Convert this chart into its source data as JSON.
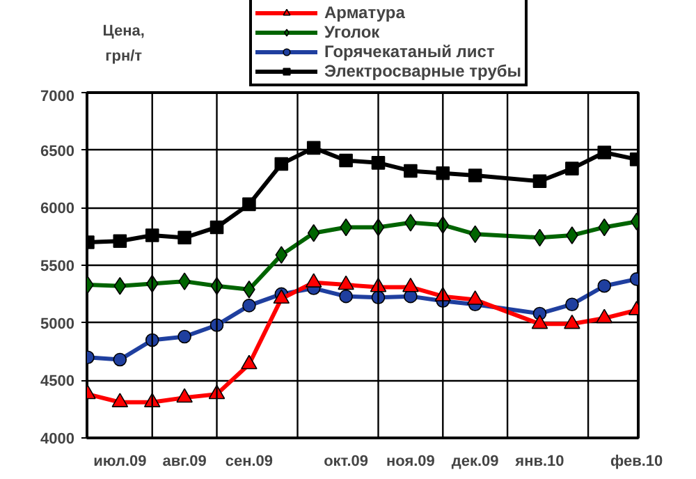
{
  "chart_data": {
    "type": "line",
    "ylabel": "Цена, грн/т",
    "categories": [
      null,
      "июл.09",
      null,
      "авг.09",
      null,
      "сен.09",
      null,
      null,
      "окт.09",
      null,
      "ноя.09",
      null,
      "дек.09",
      null,
      "янв.10",
      null,
      null,
      "фев.10"
    ],
    "series": [
      {
        "name": "Арматура",
        "color": "#ff0000",
        "marker": "triangle",
        "values": [
          4380,
          4310,
          4310,
          4350,
          4380,
          4640,
          5210,
          5350,
          5330,
          5310,
          5310,
          5230,
          5200,
          null,
          4990,
          4990,
          5040,
          5110
        ]
      },
      {
        "name": "Уголок",
        "color": "#006400",
        "marker": "diamond",
        "values": [
          5330,
          5320,
          5340,
          5360,
          5320,
          5290,
          5590,
          5780,
          5830,
          5830,
          5870,
          5850,
          5770,
          null,
          5740,
          5760,
          5830,
          5880
        ]
      },
      {
        "name": "Горячекатаный лист",
        "color": "#1f3f9f",
        "marker": "circle",
        "values": [
          4700,
          4680,
          4850,
          4880,
          4980,
          5150,
          5250,
          5300,
          5230,
          5220,
          5230,
          5190,
          5160,
          null,
          5080,
          5160,
          5320,
          5380
        ]
      },
      {
        "name": "Электросварные трубы",
        "color": "#000000",
        "marker": "square",
        "values": [
          5700,
          5710,
          5760,
          5740,
          5830,
          6030,
          6380,
          6520,
          6410,
          6390,
          6320,
          6300,
          6280,
          null,
          6230,
          6340,
          6480,
          6420
        ]
      }
    ],
    "ylim": [
      4000,
      7000
    ],
    "yticks": [
      4000,
      4500,
      5000,
      5500,
      6000,
      6500,
      7000
    ],
    "grid": true,
    "legend": "top",
    "line_style": "solid"
  }
}
